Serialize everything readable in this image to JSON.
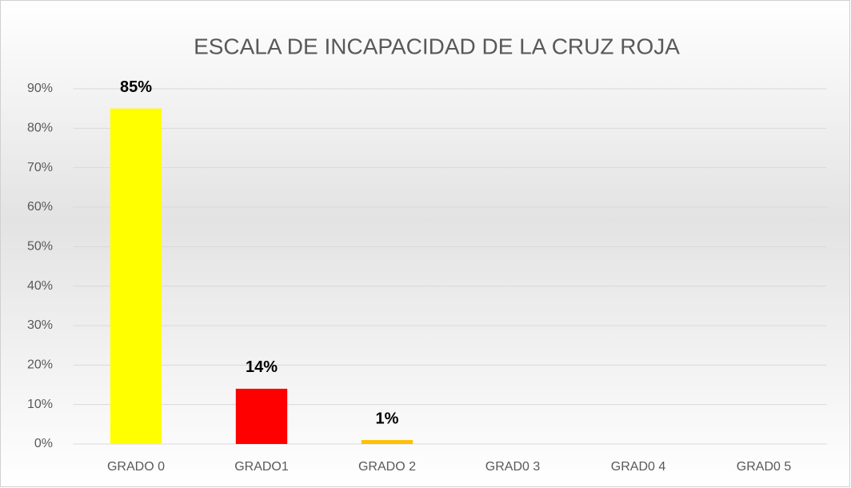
{
  "chart_data": {
    "type": "bar",
    "title": "ESCALA DE INCAPACIDAD DE LA CRUZ ROJA",
    "categories": [
      "GRADO 0",
      "GRADO1",
      "GRADO 2",
      "GRAD0 3",
      "GRAD0 4",
      "GRAD0 5"
    ],
    "values": [
      85,
      14,
      1,
      null,
      null,
      null
    ],
    "value_labels": [
      "85%",
      "14%",
      "1%",
      null,
      null,
      null
    ],
    "colors": [
      "#ffff00",
      "#ff0000",
      "#ffc000",
      null,
      null,
      null
    ],
    "ylim": [
      0,
      90
    ],
    "yticks": [
      {
        "value": 0,
        "label": "0%"
      },
      {
        "value": 10,
        "label": "10%"
      },
      {
        "value": 20,
        "label": "20%"
      },
      {
        "value": 30,
        "label": "30%"
      },
      {
        "value": 40,
        "label": "40%"
      },
      {
        "value": 50,
        "label": "50%"
      },
      {
        "value": 60,
        "label": "60%"
      },
      {
        "value": 70,
        "label": "70%"
      },
      {
        "value": 80,
        "label": "80%"
      },
      {
        "value": 90,
        "label": "90%"
      }
    ],
    "grid": true
  }
}
